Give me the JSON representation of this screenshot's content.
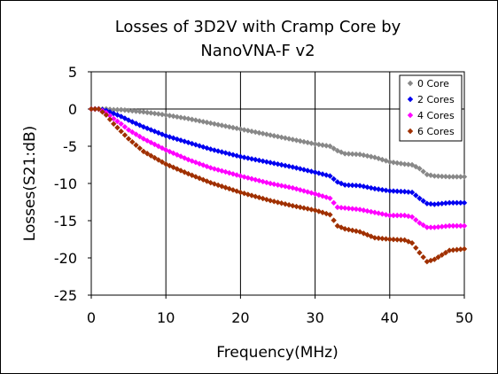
{
  "chart_data": {
    "type": "scatter",
    "title_lines": [
      "Losses of 3D2V with Cramp Core by",
      "NanoVNA-F v2"
    ],
    "xlabel": "Frequency(MHz)",
    "ylabel": "Losses(S21:dB)",
    "xlim": [
      0,
      50
    ],
    "ylim": [
      -25,
      5
    ],
    "xticks": [
      "0",
      "10",
      "20",
      "30",
      "40",
      "50"
    ],
    "yticks": [
      "5",
      "0",
      "-5",
      "-10",
      "-15",
      "-20",
      "-25"
    ],
    "grid": "vertical",
    "legend_position": "top-right",
    "series": [
      {
        "name": "0 Core",
        "color": "#888888",
        "marker": "diamond",
        "points": [
          [
            0,
            0
          ],
          [
            1,
            0
          ],
          [
            2,
            0
          ],
          [
            3,
            -0.1
          ],
          [
            4,
            -0.1
          ],
          [
            5,
            -0.2
          ],
          [
            7,
            -0.4
          ],
          [
            10,
            -0.8
          ],
          [
            13,
            -1.3
          ],
          [
            16,
            -1.9
          ],
          [
            20,
            -2.7
          ],
          [
            24,
            -3.5
          ],
          [
            27,
            -4.1
          ],
          [
            30,
            -4.7
          ],
          [
            32,
            -5.0
          ],
          [
            33,
            -5.6
          ],
          [
            34,
            -6.0
          ],
          [
            36,
            -6.1
          ],
          [
            38,
            -6.5
          ],
          [
            40,
            -7.1
          ],
          [
            42,
            -7.4
          ],
          [
            43,
            -7.5
          ],
          [
            44,
            -8.0
          ],
          [
            45,
            -8.8
          ],
          [
            46,
            -9.0
          ],
          [
            48,
            -9.1
          ],
          [
            50,
            -9.1
          ]
        ]
      },
      {
        "name": "2 Cores",
        "color": "#0000f0",
        "marker": "diamond",
        "points": [
          [
            0,
            0
          ],
          [
            1,
            0
          ],
          [
            2,
            -0.2
          ],
          [
            3,
            -0.6
          ],
          [
            4,
            -1.0
          ],
          [
            5,
            -1.5
          ],
          [
            7,
            -2.4
          ],
          [
            10,
            -3.6
          ],
          [
            13,
            -4.5
          ],
          [
            16,
            -5.4
          ],
          [
            20,
            -6.4
          ],
          [
            24,
            -7.2
          ],
          [
            27,
            -7.8
          ],
          [
            30,
            -8.5
          ],
          [
            32,
            -9.0
          ],
          [
            33,
            -9.8
          ],
          [
            34,
            -10.2
          ],
          [
            36,
            -10.3
          ],
          [
            38,
            -10.7
          ],
          [
            40,
            -11.0
          ],
          [
            42,
            -11.1
          ],
          [
            43,
            -11.2
          ],
          [
            44,
            -12.0
          ],
          [
            45,
            -12.7
          ],
          [
            46,
            -12.8
          ],
          [
            48,
            -12.6
          ],
          [
            50,
            -12.6
          ]
        ]
      },
      {
        "name": "4 Cores",
        "color": "#ff00ff",
        "marker": "diamond",
        "points": [
          [
            0,
            0
          ],
          [
            1,
            0
          ],
          [
            2,
            -0.5
          ],
          [
            3,
            -1.3
          ],
          [
            4,
            -2.0
          ],
          [
            5,
            -2.8
          ],
          [
            7,
            -4.0
          ],
          [
            10,
            -5.5
          ],
          [
            13,
            -6.8
          ],
          [
            16,
            -7.9
          ],
          [
            20,
            -9.0
          ],
          [
            24,
            -10.0
          ],
          [
            27,
            -10.6
          ],
          [
            30,
            -11.4
          ],
          [
            32,
            -12.0
          ],
          [
            33,
            -13.2
          ],
          [
            34,
            -13.3
          ],
          [
            36,
            -13.5
          ],
          [
            38,
            -13.9
          ],
          [
            40,
            -14.3
          ],
          [
            42,
            -14.3
          ],
          [
            43,
            -14.5
          ],
          [
            44,
            -15.3
          ],
          [
            45,
            -15.9
          ],
          [
            46,
            -15.9
          ],
          [
            48,
            -15.7
          ],
          [
            50,
            -15.7
          ]
        ]
      },
      {
        "name": "6 Cores",
        "color": "#a03000",
        "marker": "diamond",
        "points": [
          [
            0,
            0
          ],
          [
            1,
            0
          ],
          [
            2,
            -0.8
          ],
          [
            3,
            -2.0
          ],
          [
            4,
            -3.0
          ],
          [
            5,
            -4.0
          ],
          [
            7,
            -5.7
          ],
          [
            10,
            -7.4
          ],
          [
            13,
            -8.7
          ],
          [
            16,
            -9.9
          ],
          [
            20,
            -11.2
          ],
          [
            24,
            -12.3
          ],
          [
            27,
            -13.0
          ],
          [
            30,
            -13.6
          ],
          [
            32,
            -14.2
          ],
          [
            33,
            -15.7
          ],
          [
            34,
            -16.1
          ],
          [
            36,
            -16.5
          ],
          [
            38,
            -17.3
          ],
          [
            40,
            -17.5
          ],
          [
            42,
            -17.6
          ],
          [
            43,
            -18.0
          ],
          [
            44,
            -19.3
          ],
          [
            45,
            -20.5
          ],
          [
            46,
            -20.2
          ],
          [
            48,
            -19.0
          ],
          [
            50,
            -18.8
          ]
        ]
      }
    ]
  }
}
